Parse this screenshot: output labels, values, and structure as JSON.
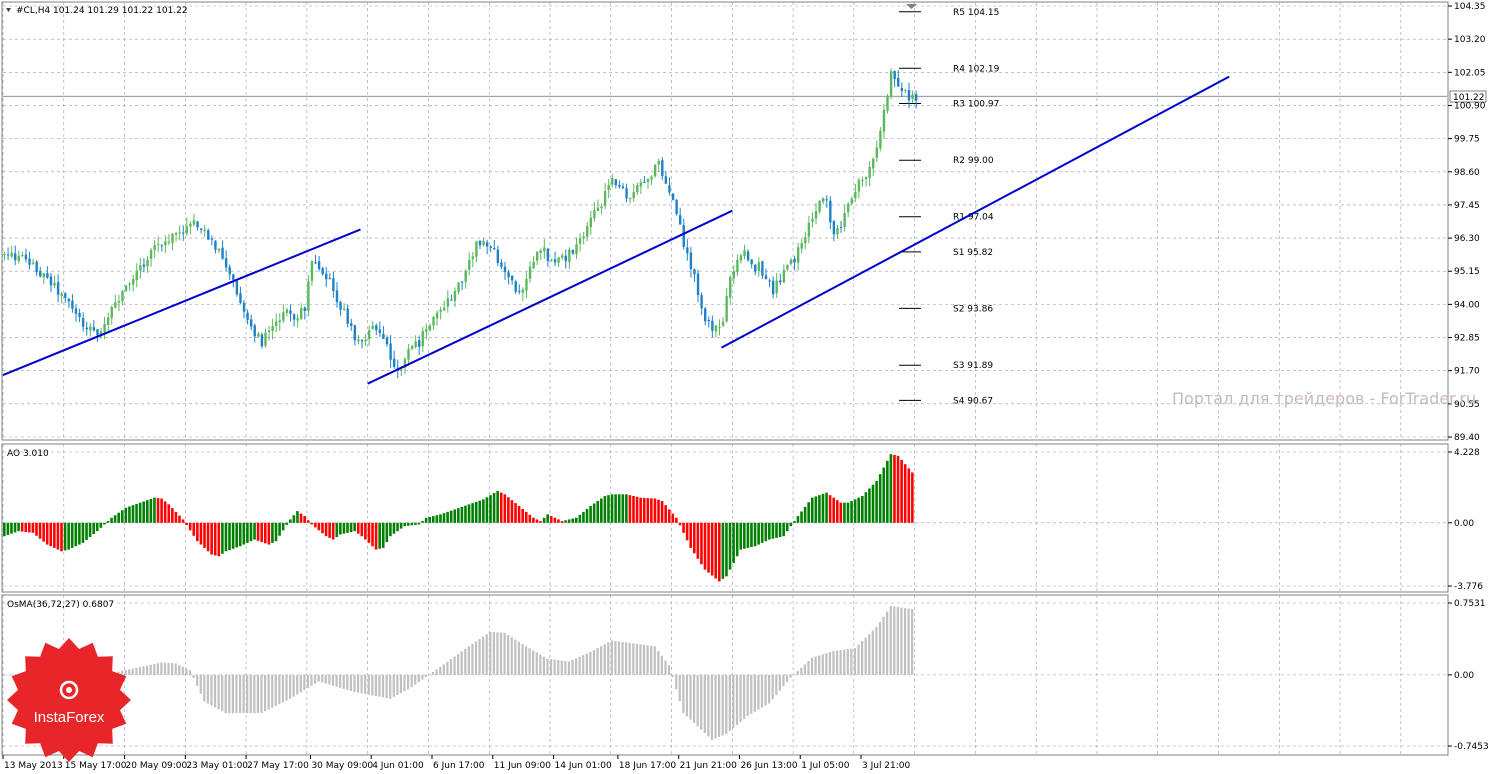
{
  "header": {
    "symbol_line": "#CL,H4  101.24 101.29 101.22 101.22"
  },
  "watermark": "Портал для трейдеров - ForTrader.ru",
  "logo": {
    "text": "InstaForex",
    "color": "#e8262a"
  },
  "colors": {
    "up_candle": "#5cb85c",
    "down_candle": "#1e82c8",
    "trendline": "#0000cc",
    "ao_up": "#008000",
    "ao_down": "#ff0000",
    "osma": "#c0c0c0",
    "grid": "#8fa0b4",
    "price_line": "#5a7080"
  },
  "chart_data": [
    {
      "type": "candlestick",
      "panel": "price",
      "title": "#CL,H4",
      "ohlc_current": {
        "open": 101.24,
        "high": 101.29,
        "low": 101.22,
        "close": 101.22
      },
      "current_price_label": "101.22",
      "ylim": [
        89.4,
        104.35
      ],
      "y_ticks": [
        "104.35",
        "103.20",
        "102.05",
        "100.90",
        "99.75",
        "98.60",
        "97.45",
        "96.30",
        "95.15",
        "94.00",
        "92.85",
        "91.70",
        "90.55",
        "89.40"
      ],
      "pivot_levels": [
        {
          "label": "R5 104.15",
          "value": 104.15
        },
        {
          "label": "R4 102.19",
          "value": 102.19
        },
        {
          "label": "R3 100.97",
          "value": 100.97
        },
        {
          "label": "R2 99.00",
          "value": 99.0
        },
        {
          "label": "R1 97.04",
          "value": 97.04
        },
        {
          "label": "S1 95.82",
          "value": 95.82
        },
        {
          "label": "S2 93.86",
          "value": 93.86
        },
        {
          "label": "S3 91.89",
          "value": 91.89
        },
        {
          "label": "S4 90.67",
          "value": 90.67
        }
      ],
      "close_path": [
        [
          0,
          95.7
        ],
        [
          5,
          95.6
        ],
        [
          10,
          95.1
        ],
        [
          14,
          94.6
        ],
        [
          18,
          94.0
        ],
        [
          22,
          93.3
        ],
        [
          26,
          93.0
        ],
        [
          30,
          93.8
        ],
        [
          34,
          94.5
        ],
        [
          38,
          95.3
        ],
        [
          42,
          96.0
        ],
        [
          46,
          96.3
        ],
        [
          50,
          96.6
        ],
        [
          53,
          96.8
        ],
        [
          56,
          96.5
        ],
        [
          59,
          96.0
        ],
        [
          62,
          95.4
        ],
        [
          65,
          94.4
        ],
        [
          68,
          93.6
        ],
        [
          70,
          93.0
        ],
        [
          72,
          92.7
        ],
        [
          76,
          93.3
        ],
        [
          79,
          93.7
        ],
        [
          82,
          93.6
        ],
        [
          84,
          93.9
        ],
        [
          86,
          95.5
        ],
        [
          89,
          94.9
        ],
        [
          92,
          94.6
        ],
        [
          94,
          93.9
        ],
        [
          96,
          93.5
        ],
        [
          98,
          92.9
        ],
        [
          100,
          92.7
        ],
        [
          103,
          93.2
        ],
        [
          106,
          92.8
        ],
        [
          108,
          92.1
        ],
        [
          110,
          91.7
        ],
        [
          113,
          92.3
        ],
        [
          116,
          92.7
        ],
        [
          119,
          93.4
        ],
        [
          122,
          93.7
        ],
        [
          125,
          94.3
        ],
        [
          128,
          94.8
        ],
        [
          130,
          95.5
        ],
        [
          132,
          96.1
        ],
        [
          135,
          96.0
        ],
        [
          138,
          95.6
        ],
        [
          141,
          94.9
        ],
        [
          144,
          94.4
        ],
        [
          146,
          94.9
        ],
        [
          148,
          95.5
        ],
        [
          150,
          96.0
        ],
        [
          153,
          95.5
        ],
        [
          156,
          95.6
        ],
        [
          159,
          95.8
        ],
        [
          162,
          96.4
        ],
        [
          165,
          97.1
        ],
        [
          168,
          97.8
        ],
        [
          170,
          98.3
        ],
        [
          172,
          98.1
        ],
        [
          175,
          97.7
        ],
        [
          178,
          98.3
        ],
        [
          181,
          98.5
        ],
        [
          183,
          98.9
        ],
        [
          185,
          98.1
        ],
        [
          187,
          97.6
        ],
        [
          189,
          96.6
        ],
        [
          191,
          95.6
        ],
        [
          193,
          94.9
        ],
        [
          195,
          93.8
        ],
        [
          197,
          93.3
        ],
        [
          199,
          93.1
        ],
        [
          201,
          93.5
        ],
        [
          203,
          94.8
        ],
        [
          205,
          95.5
        ],
        [
          207,
          95.9
        ],
        [
          209,
          95.3
        ],
        [
          211,
          95.3
        ],
        [
          213,
          94.9
        ],
        [
          215,
          94.4
        ],
        [
          218,
          95.2
        ],
        [
          221,
          95.6
        ],
        [
          224,
          96.4
        ],
        [
          226,
          97.0
        ],
        [
          228,
          97.6
        ],
        [
          230,
          97.5
        ],
        [
          232,
          96.3
        ],
        [
          235,
          97.0
        ],
        [
          237,
          97.8
        ],
        [
          239,
          98.3
        ],
        [
          242,
          98.7
        ],
        [
          244,
          99.6
        ],
        [
          246,
          100.6
        ],
        [
          248,
          102.0
        ],
        [
          250,
          101.6
        ],
        [
          253,
          101.2
        ],
        [
          255,
          101.22
        ]
      ],
      "trendlines": [
        {
          "from": {
            "bar": 0,
            "price": 91.55
          },
          "to": {
            "bar": 100,
            "price": 96.6
          }
        },
        {
          "from": {
            "bar": 102,
            "price": 91.25
          },
          "to": {
            "bar": 204,
            "price": 97.25
          }
        },
        {
          "from": {
            "bar": 201,
            "price": 92.5
          },
          "to": {
            "bar": 343,
            "price": 101.9
          }
        }
      ]
    },
    {
      "type": "bar",
      "panel": "AO",
      "title": "AO 3.010",
      "ylim": [
        -3.776,
        4.228
      ],
      "y_ticks": [
        "4.228",
        "0.00",
        "-3.776"
      ],
      "points": [
        [
          0,
          -0.8
        ],
        [
          4,
          -0.5
        ],
        [
          8,
          -0.6
        ],
        [
          12,
          -1.3
        ],
        [
          16,
          -1.7
        ],
        [
          18,
          -1.6
        ],
        [
          22,
          -1.2
        ],
        [
          26,
          -0.5
        ],
        [
          30,
          0.3
        ],
        [
          34,
          0.9
        ],
        [
          38,
          1.2
        ],
        [
          42,
          1.5
        ],
        [
          44,
          1.45
        ],
        [
          46,
          1.1
        ],
        [
          50,
          0.2
        ],
        [
          54,
          -1.1
        ],
        [
          58,
          -1.9
        ],
        [
          60,
          -2.0
        ],
        [
          62,
          -1.7
        ],
        [
          66,
          -1.4
        ],
        [
          70,
          -1.0
        ],
        [
          74,
          -1.3
        ],
        [
          76,
          -1.1
        ],
        [
          80,
          0.2
        ],
        [
          82,
          0.7
        ],
        [
          84,
          0.4
        ],
        [
          86,
          -0.1
        ],
        [
          90,
          -0.8
        ],
        [
          92,
          -1.0
        ],
        [
          94,
          -0.7
        ],
        [
          98,
          -0.5
        ],
        [
          100,
          -0.8
        ],
        [
          104,
          -1.6
        ],
        [
          106,
          -1.5
        ],
        [
          108,
          -0.8
        ],
        [
          112,
          -0.2
        ],
        [
          116,
          -0.1
        ],
        [
          118,
          0.3
        ],
        [
          122,
          0.5
        ],
        [
          126,
          0.8
        ],
        [
          130,
          1.1
        ],
        [
          134,
          1.4
        ],
        [
          138,
          1.9
        ],
        [
          140,
          1.7
        ],
        [
          144,
          1.0
        ],
        [
          148,
          0.3
        ],
        [
          150,
          0.1
        ],
        [
          152,
          0.5
        ],
        [
          156,
          0.1
        ],
        [
          160,
          0.3
        ],
        [
          164,
          1.0
        ],
        [
          168,
          1.6
        ],
        [
          170,
          1.7
        ],
        [
          174,
          1.7
        ],
        [
          178,
          1.5
        ],
        [
          182,
          1.45
        ],
        [
          184,
          1.3
        ],
        [
          188,
          0.3
        ],
        [
          192,
          -1.5
        ],
        [
          196,
          -2.8
        ],
        [
          200,
          -3.5
        ],
        [
          202,
          -3.2
        ],
        [
          206,
          -1.6
        ],
        [
          210,
          -1.4
        ],
        [
          214,
          -1.0
        ],
        [
          218,
          -0.8
        ],
        [
          222,
          0.4
        ],
        [
          226,
          1.5
        ],
        [
          230,
          1.8
        ],
        [
          234,
          1.2
        ],
        [
          236,
          1.2
        ],
        [
          240,
          1.6
        ],
        [
          244,
          2.5
        ],
        [
          248,
          4.1
        ],
        [
          250,
          4.0
        ],
        [
          254,
          3.0
        ]
      ]
    },
    {
      "type": "bar",
      "panel": "OsMA",
      "title": "OsMA(36,72,27) 0.6807",
      "ylim": [
        -0.7453,
        0.7531
      ],
      "y_ticks": [
        "0.7531",
        "0.00",
        "-0.7453"
      ],
      "points": [
        [
          0,
          0.0
        ],
        [
          14,
          -0.05
        ],
        [
          24,
          -0.03
        ],
        [
          34,
          0.05
        ],
        [
          44,
          0.13
        ],
        [
          48,
          0.12
        ],
        [
          52,
          0.05
        ],
        [
          56,
          -0.28
        ],
        [
          62,
          -0.4
        ],
        [
          72,
          -0.4
        ],
        [
          80,
          -0.25
        ],
        [
          88,
          -0.07
        ],
        [
          98,
          -0.18
        ],
        [
          108,
          -0.25
        ],
        [
          114,
          -0.13
        ],
        [
          120,
          0.03
        ],
        [
          130,
          0.3
        ],
        [
          136,
          0.45
        ],
        [
          140,
          0.44
        ],
        [
          146,
          0.3
        ],
        [
          152,
          0.17
        ],
        [
          158,
          0.14
        ],
        [
          164,
          0.24
        ],
        [
          170,
          0.36
        ],
        [
          176,
          0.33
        ],
        [
          182,
          0.3
        ],
        [
          186,
          0.1
        ],
        [
          190,
          -0.4
        ],
        [
          198,
          -0.68
        ],
        [
          202,
          -0.62
        ],
        [
          208,
          -0.43
        ],
        [
          214,
          -0.3
        ],
        [
          220,
          -0.03
        ],
        [
          226,
          0.18
        ],
        [
          232,
          0.25
        ],
        [
          238,
          0.28
        ],
        [
          244,
          0.5
        ],
        [
          248,
          0.72
        ],
        [
          254,
          0.69
        ]
      ]
    }
  ],
  "time_axis": {
    "labels": [
      {
        "bar": 0,
        "text": "13 May 2013"
      },
      {
        "bar": 17,
        "text": "15 May 17:00"
      },
      {
        "bar": 34,
        "text": "20 May 09:00"
      },
      {
        "bar": 51,
        "text": "23 May 01:00"
      },
      {
        "bar": 68,
        "text": "27 May 17:00"
      },
      {
        "bar": 86,
        "text": "30 May 09:00"
      },
      {
        "bar": 103,
        "text": "4 Jun 01:00"
      },
      {
        "bar": 120,
        "text": "6 Jun 17:00"
      },
      {
        "bar": 137,
        "text": "11 Jun 09:00"
      },
      {
        "bar": 154,
        "text": "14 Jun 01:00"
      },
      {
        "bar": 172,
        "text": "18 Jun 17:00"
      },
      {
        "bar": 189,
        "text": "21 Jun 21:00"
      },
      {
        "bar": 206,
        "text": "26 Jun 13:00"
      },
      {
        "bar": 223,
        "text": "1 Jul 05:00"
      },
      {
        "bar": 240,
        "text": "3 Jul 21:00"
      }
    ],
    "grid_every_bars": 17
  }
}
